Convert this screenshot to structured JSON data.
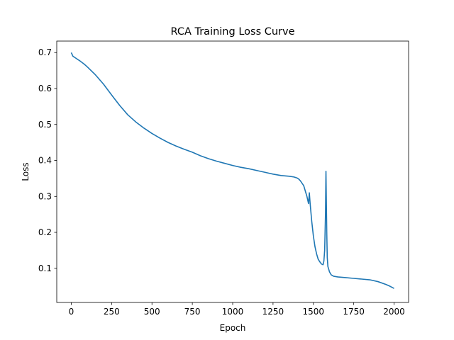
{
  "chart_data": {
    "type": "line",
    "title": "RCA Training Loss Curve",
    "xlabel": "Epoch",
    "ylabel": "Loss",
    "xlim": [
      -90,
      2090
    ],
    "ylim": [
      0.005,
      0.732
    ],
    "xticks": [
      0,
      250,
      500,
      750,
      1000,
      1250,
      1500,
      1750,
      2000
    ],
    "yticks": [
      0.1,
      0.2,
      0.3,
      0.4,
      0.5,
      0.6,
      0.7
    ],
    "grid": false,
    "legend": "none",
    "series": [
      {
        "color": "#1f77b4",
        "x": [
          0,
          10,
          30,
          50,
          80,
          100,
          150,
          200,
          250,
          300,
          350,
          400,
          450,
          500,
          550,
          600,
          650,
          700,
          750,
          800,
          850,
          900,
          950,
          1000,
          1050,
          1100,
          1150,
          1200,
          1250,
          1300,
          1350,
          1380,
          1400,
          1410,
          1420,
          1440,
          1460,
          1470,
          1475,
          1480,
          1490,
          1500,
          1510,
          1520,
          1530,
          1540,
          1550,
          1560,
          1565,
          1570,
          1575,
          1578,
          1580,
          1583,
          1586,
          1590,
          1600,
          1610,
          1625,
          1650,
          1700,
          1750,
          1800,
          1850,
          1900,
          1950,
          1975,
          2000
        ],
        "y": [
          0.7,
          0.69,
          0.684,
          0.678,
          0.668,
          0.66,
          0.638,
          0.612,
          0.582,
          0.553,
          0.527,
          0.507,
          0.49,
          0.475,
          0.462,
          0.45,
          0.44,
          0.431,
          0.423,
          0.413,
          0.405,
          0.398,
          0.392,
          0.386,
          0.381,
          0.377,
          0.372,
          0.367,
          0.362,
          0.358,
          0.356,
          0.354,
          0.351,
          0.348,
          0.343,
          0.33,
          0.3,
          0.28,
          0.31,
          0.28,
          0.23,
          0.19,
          0.16,
          0.14,
          0.125,
          0.118,
          0.112,
          0.11,
          0.12,
          0.15,
          0.25,
          0.37,
          0.3,
          0.2,
          0.13,
          0.105,
          0.09,
          0.082,
          0.078,
          0.076,
          0.074,
          0.072,
          0.07,
          0.068,
          0.063,
          0.055,
          0.05,
          0.044
        ]
      }
    ]
  }
}
